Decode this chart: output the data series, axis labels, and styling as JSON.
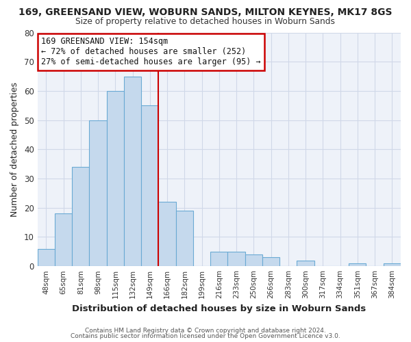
{
  "title": "169, GREENSAND VIEW, WOBURN SANDS, MILTON KEYNES, MK17 8GS",
  "subtitle": "Size of property relative to detached houses in Woburn Sands",
  "xlabel": "Distribution of detached houses by size in Woburn Sands",
  "ylabel": "Number of detached properties",
  "bin_labels": [
    "48sqm",
    "65sqm",
    "81sqm",
    "98sqm",
    "115sqm",
    "132sqm",
    "149sqm",
    "166sqm",
    "182sqm",
    "199sqm",
    "216sqm",
    "233sqm",
    "250sqm",
    "266sqm",
    "283sqm",
    "300sqm",
    "317sqm",
    "334sqm",
    "351sqm",
    "367sqm",
    "384sqm"
  ],
  "bar_heights": [
    6,
    18,
    34,
    50,
    60,
    65,
    55,
    22,
    19,
    0,
    5,
    5,
    4,
    3,
    0,
    2,
    0,
    0,
    1,
    0,
    1
  ],
  "bar_color": "#c5d9ed",
  "bar_edge_color": "#6aaad4",
  "vline_x": 6.5,
  "vline_color": "#cc0000",
  "ylim": [
    0,
    80
  ],
  "yticks": [
    0,
    10,
    20,
    30,
    40,
    50,
    60,
    70,
    80
  ],
  "annotation_title": "169 GREENSAND VIEW: 154sqm",
  "annotation_line1": "← 72% of detached houses are smaller (252)",
  "annotation_line2": "27% of semi-detached houses are larger (95) →",
  "annotation_box_color": "#ffffff",
  "annotation_box_edge": "#cc0000",
  "footer1": "Contains HM Land Registry data © Crown copyright and database right 2024.",
  "footer2": "Contains public sector information licensed under the Open Government Licence v3.0.",
  "grid_color": "#d0d8e8",
  "fig_background_color": "#ffffff",
  "plot_background_color": "#eef2f9"
}
